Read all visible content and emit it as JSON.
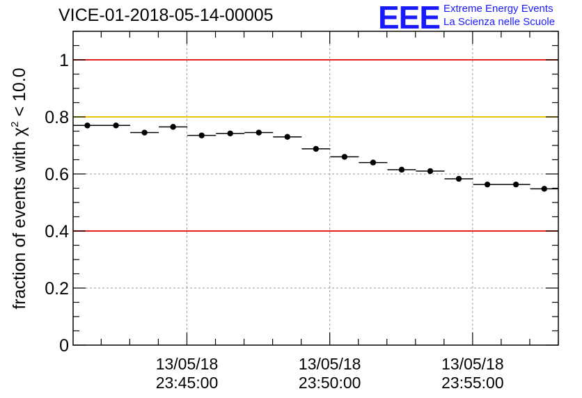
{
  "title": "VICE-01-2018-05-14-00005",
  "logo": {
    "mark": "EEE",
    "line1": "Extreme Energy Events",
    "line2": "La Scienza nelle Scuole",
    "color": "#1a1aff"
  },
  "chart_data": {
    "type": "scatter",
    "ylabel_prefix": "fraction of events with ",
    "ylabel_symbol": "χ",
    "ylabel_sup": "2",
    "ylabel_suffix": " < 10.0",
    "ylim": [
      0,
      1.1
    ],
    "yticks": [
      {
        "v": 0,
        "label": "0"
      },
      {
        "v": 0.2,
        "label": "0.2"
      },
      {
        "v": 0.4,
        "label": "0.4"
      },
      {
        "v": 0.6,
        "label": "0.6"
      },
      {
        "v": 0.8,
        "label": "0.8"
      },
      {
        "v": 1.0,
        "label": "1"
      }
    ],
    "xlim_minutes": [
      "2018-05-13 23:41:01",
      "2018-05-13 23:58:00"
    ],
    "xticks": [
      {
        "time": "2018-05-13 23:45:00",
        "date_label": "13/05/18",
        "time_label": "23:45:00"
      },
      {
        "time": "2018-05-13 23:50:00",
        "date_label": "13/05/18",
        "time_label": "23:50:00"
      },
      {
        "time": "2018-05-13 23:55:00",
        "date_label": "13/05/18",
        "time_label": "23:55:00"
      }
    ],
    "grid": true,
    "reference_lines": [
      {
        "y": 1.0,
        "color": "#e8201c"
      },
      {
        "y": 0.8,
        "color": "#f6c400"
      },
      {
        "y": 0.4,
        "color": "#e8201c"
      }
    ],
    "points": [
      {
        "x_start": "2018-05-13 23:41:01",
        "x_end": "2018-05-13 23:42:01",
        "y": 0.77
      },
      {
        "x_start": "2018-05-13 23:42:01",
        "x_end": "2018-05-13 23:43:01",
        "y": 0.77
      },
      {
        "x_start": "2018-05-13 23:43:01",
        "x_end": "2018-05-13 23:44:01",
        "y": 0.745
      },
      {
        "x_start": "2018-05-13 23:44:01",
        "x_end": "2018-05-13 23:45:01",
        "y": 0.765
      },
      {
        "x_start": "2018-05-13 23:45:01",
        "x_end": "2018-05-13 23:46:01",
        "y": 0.735
      },
      {
        "x_start": "2018-05-13 23:46:01",
        "x_end": "2018-05-13 23:47:01",
        "y": 0.742
      },
      {
        "x_start": "2018-05-13 23:47:01",
        "x_end": "2018-05-13 23:48:01",
        "y": 0.745
      },
      {
        "x_start": "2018-05-13 23:48:01",
        "x_end": "2018-05-13 23:49:01",
        "y": 0.73
      },
      {
        "x_start": "2018-05-13 23:49:01",
        "x_end": "2018-05-13 23:50:01",
        "y": 0.688
      },
      {
        "x_start": "2018-05-13 23:50:01",
        "x_end": "2018-05-13 23:51:01",
        "y": 0.66
      },
      {
        "x_start": "2018-05-13 23:51:01",
        "x_end": "2018-05-13 23:52:01",
        "y": 0.64
      },
      {
        "x_start": "2018-05-13 23:52:01",
        "x_end": "2018-05-13 23:53:01",
        "y": 0.615
      },
      {
        "x_start": "2018-05-13 23:53:01",
        "x_end": "2018-05-13 23:54:01",
        "y": 0.61
      },
      {
        "x_start": "2018-05-13 23:54:01",
        "x_end": "2018-05-13 23:55:01",
        "y": 0.583
      },
      {
        "x_start": "2018-05-13 23:55:01",
        "x_end": "2018-05-13 23:56:01",
        "y": 0.563
      },
      {
        "x_start": "2018-05-13 23:56:01",
        "x_end": "2018-05-13 23:57:01",
        "y": 0.563
      },
      {
        "x_start": "2018-05-13 23:57:01",
        "x_end": "2018-05-13 23:58:00",
        "y": 0.548
      }
    ]
  }
}
